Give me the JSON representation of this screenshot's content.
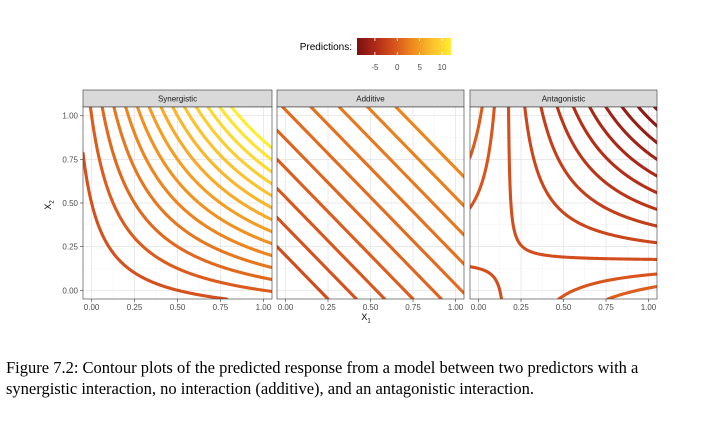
{
  "chart_data": {
    "type": "line",
    "subtype": "contour",
    "legend": {
      "title": "Predictions:",
      "position": "top",
      "range": [
        -9,
        12
      ],
      "ticks": [
        -5,
        0,
        5,
        10
      ],
      "tick_labels": [
        "-5",
        "0",
        "5",
        "10"
      ],
      "colors": [
        "#7a1010",
        "#b02a18",
        "#d8541d",
        "#f08c1e",
        "#fbc02d",
        "#ffee30"
      ]
    },
    "facets": [
      "Synergistic",
      "Additive",
      "Antagonistic"
    ],
    "x_ticks": [
      0,
      0.25,
      0.5,
      0.75,
      1
    ],
    "x_tick_labels": [
      "0.00",
      "0.25",
      "0.50",
      "0.75",
      "1.00"
    ],
    "y_ticks": [
      0,
      0.25,
      0.5,
      0.75,
      1
    ],
    "y_tick_labels": [
      "0.00",
      "0.25",
      "0.50",
      "0.75",
      "1.00"
    ],
    "xlabel": "X",
    "xlabel_sub": "1",
    "ylabel": "X",
    "ylabel_sub": "2",
    "xlim": [
      0,
      1
    ],
    "ylim": [
      0,
      1
    ],
    "grid": true
  },
  "caption": "Figure 7.2: Contour plots of the predicted response from a model between two predictors with a synergistic interaction, no interaction (additive), and an antagonistic interaction."
}
